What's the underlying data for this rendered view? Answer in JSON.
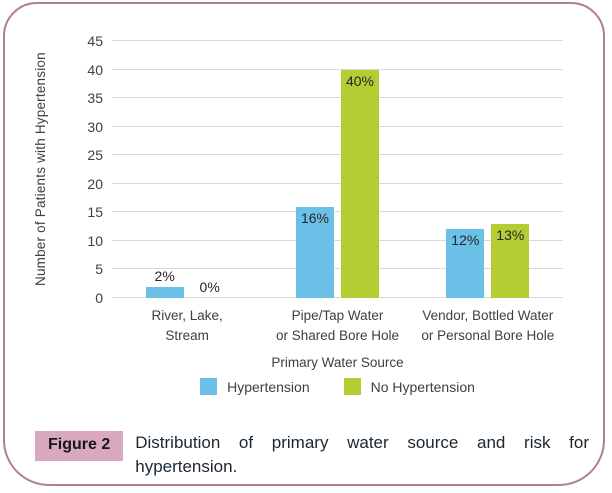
{
  "figure": {
    "label": "Figure 2",
    "caption": "Distribution of primary water source and risk for hypertension."
  },
  "colors": {
    "hypertension_bar": "#6BC0E7",
    "no_hypertension_bar": "#B5CC33",
    "gridline": "#D9D9D9",
    "axis_text": "#404040",
    "panel_border": "#B07C96",
    "figure_label_bg": "#D9A9BF"
  },
  "chart_data": {
    "type": "bar",
    "title": "",
    "categories": [
      "River, Lake,\nStream",
      "Pipe/Tap Water\nor Shared Bore Hole",
      "Vendor, Bottled Water\nor Personal Bore Hole"
    ],
    "series": [
      {
        "name": "Hypertension",
        "color": "#6BC0E7",
        "values": [
          2,
          16,
          12
        ],
        "labels": [
          "2%",
          "16%",
          "12%"
        ]
      },
      {
        "name": "No Hypertension",
        "color": "#B5CC33",
        "values": [
          0,
          40,
          13
        ],
        "labels": [
          "0%",
          "40%",
          "13%"
        ]
      }
    ],
    "xlabel": "Primary Water Source",
    "ylabel": "Number of Patients with Hypertension",
    "ylim": [
      0,
      45
    ],
    "ytick_step": 5,
    "grid": true,
    "legend_position": "bottom"
  }
}
